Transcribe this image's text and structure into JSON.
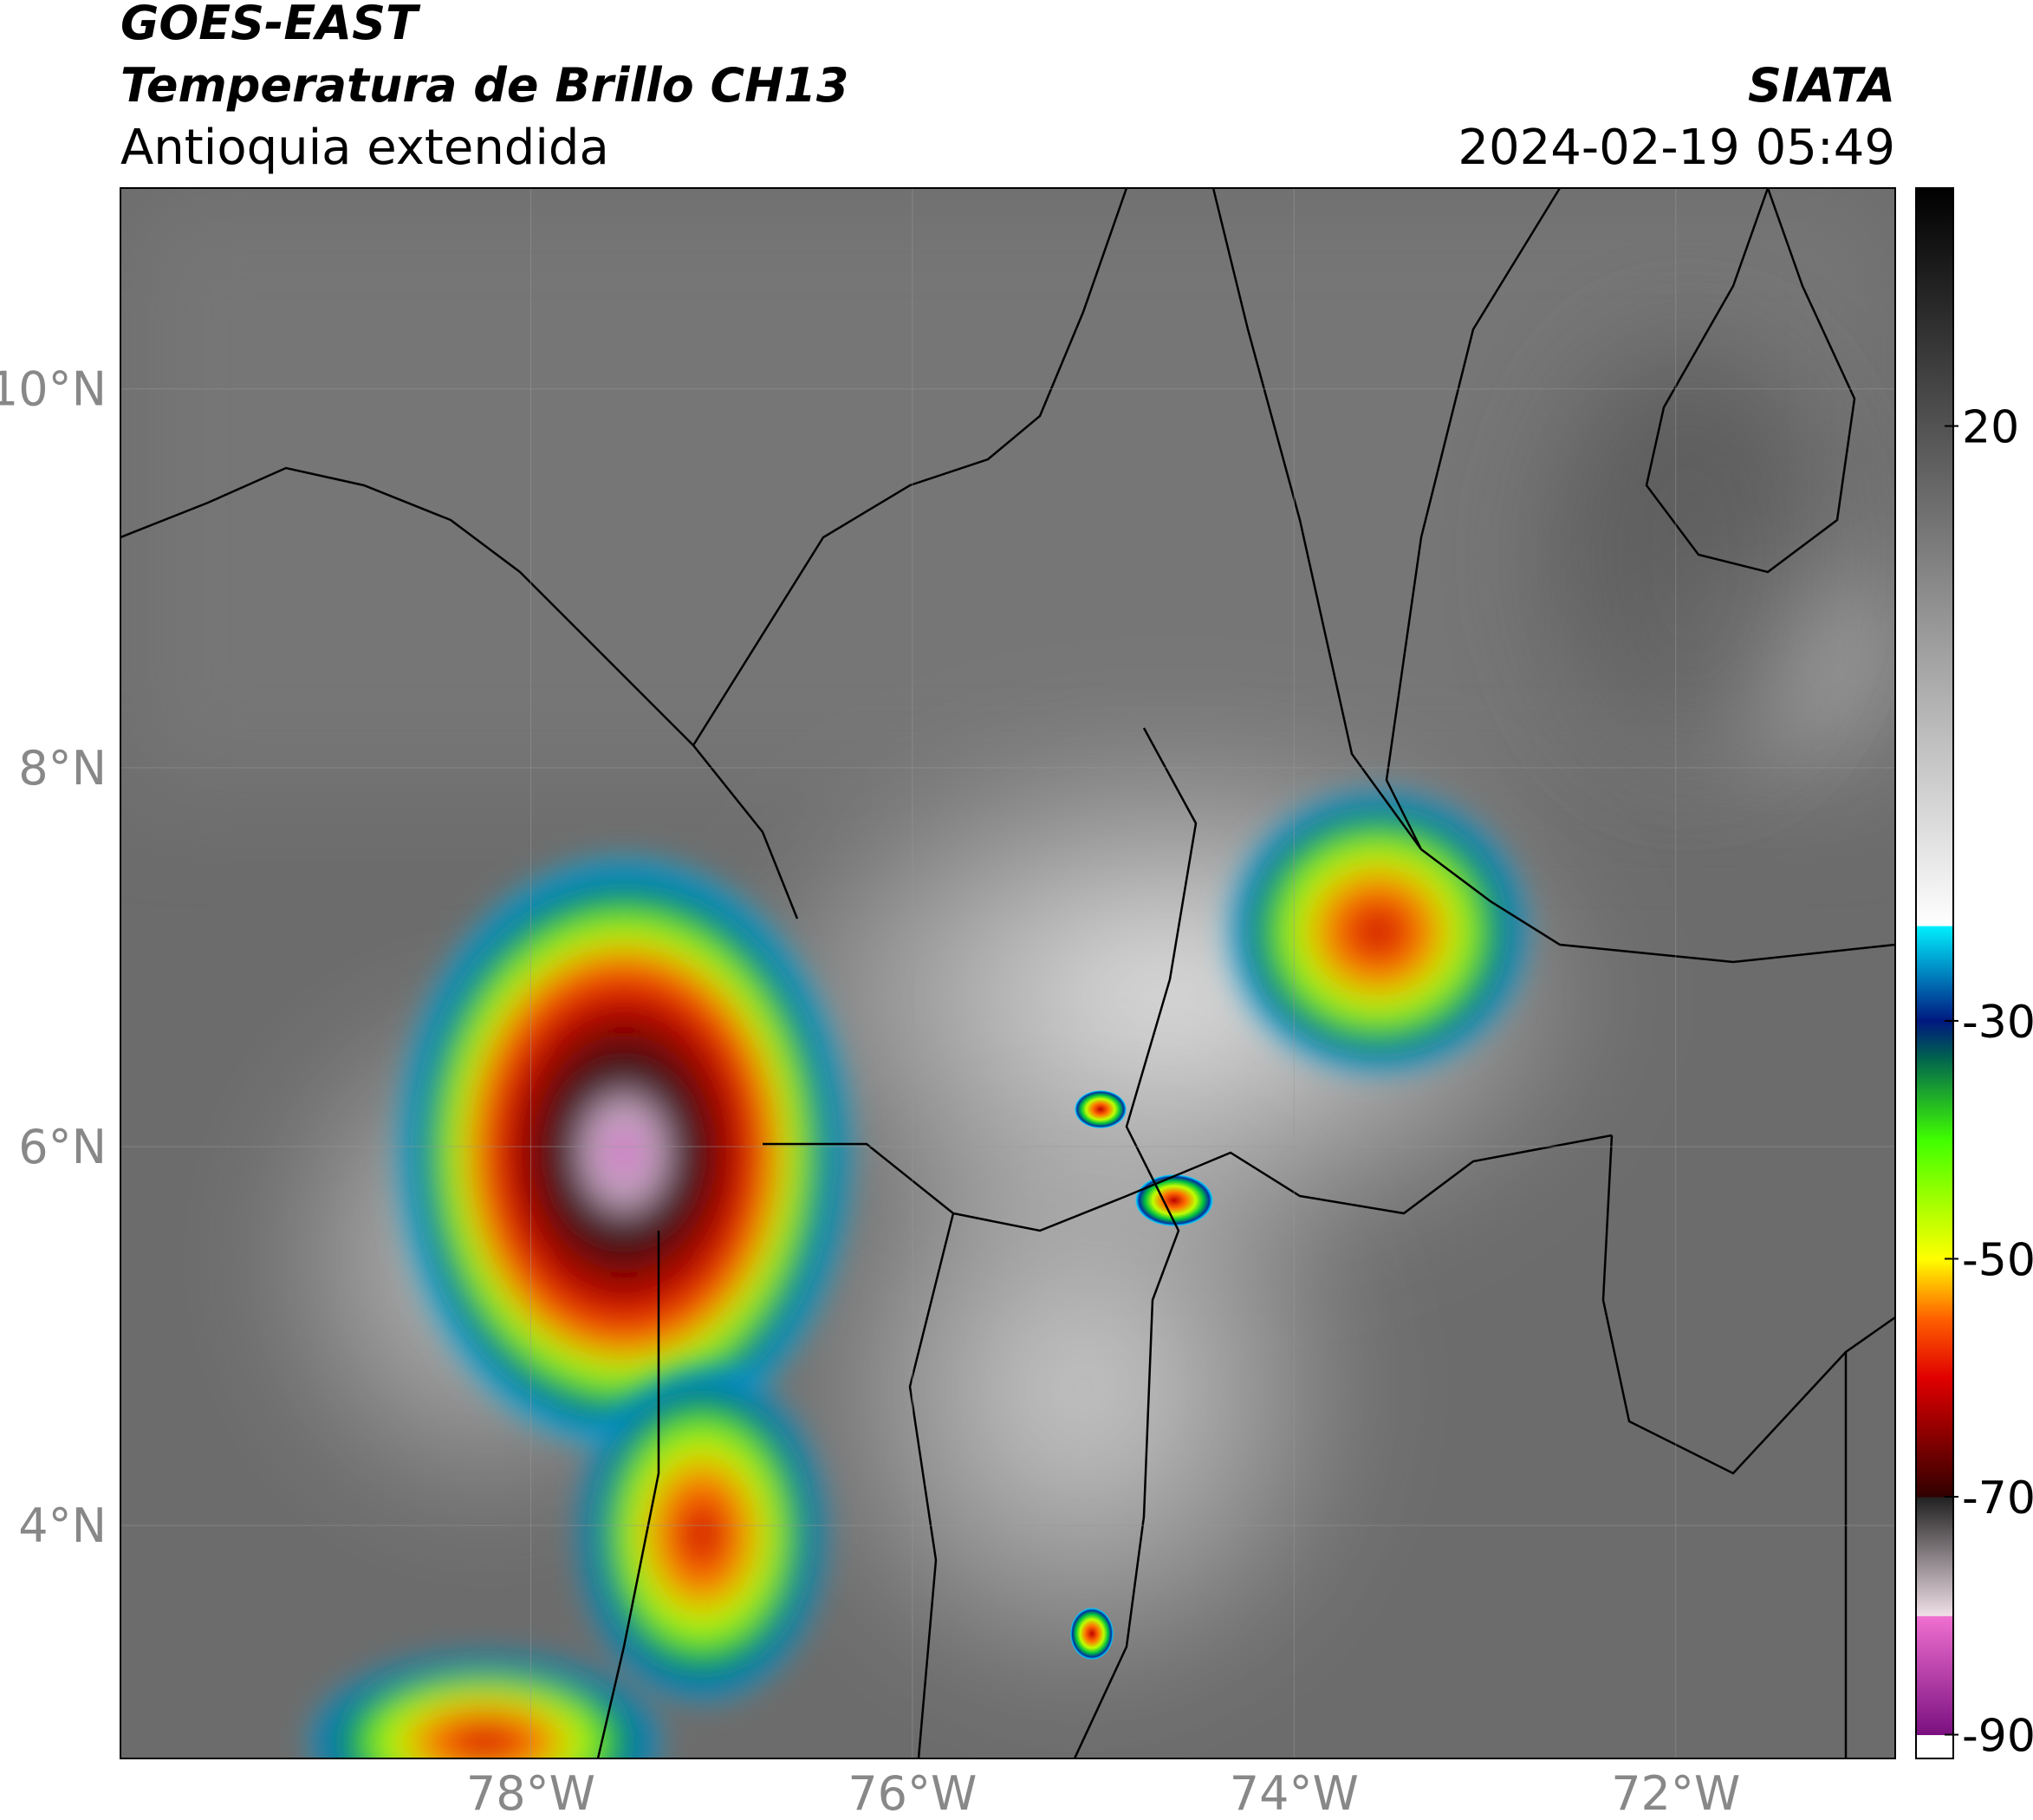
{
  "header": {
    "title": "GOES-EAST",
    "subtitle": "Temperatura de Brillo CH13",
    "region": "Antioquia extendida",
    "source": "SIATA",
    "datetime": "2024-02-19 05:49"
  },
  "map": {
    "type": "satellite",
    "xlim": [
      -80.15,
      -70.85
    ],
    "ylim": [
      2.77,
      11.06
    ],
    "xticks": [
      {
        "value": -78,
        "label": "78°W"
      },
      {
        "value": -76,
        "label": "76°W"
      },
      {
        "value": -74,
        "label": "74°W"
      },
      {
        "value": -72,
        "label": "72°W"
      }
    ],
    "yticks": [
      {
        "value": 4,
        "label": "4°N"
      },
      {
        "value": 6,
        "label": "6°N"
      },
      {
        "value": 8,
        "label": "8°N"
      },
      {
        "value": 10,
        "label": "10°N"
      }
    ],
    "grid": true
  },
  "colorbar": {
    "lim": [
      -92,
      40
    ],
    "ticks": [
      -90,
      -70,
      -50,
      -30,
      20
    ],
    "stops": [
      {
        "value": -92,
        "color": "#ffffff"
      },
      {
        "value": -90,
        "color": "#ffffff"
      },
      {
        "value": -90,
        "color": "#7a1080"
      },
      {
        "value": -80,
        "color": "#f070d0"
      },
      {
        "value": -80,
        "color": "#f0e0e8"
      },
      {
        "value": -70,
        "color": "#202020"
      },
      {
        "value": -70,
        "color": "#300000"
      },
      {
        "value": -60,
        "color": "#e00000"
      },
      {
        "value": -55,
        "color": "#ff6000"
      },
      {
        "value": -50,
        "color": "#ffff00"
      },
      {
        "value": -40,
        "color": "#40ff00"
      },
      {
        "value": -33,
        "color": "#006050"
      },
      {
        "value": -30,
        "color": "#001880"
      },
      {
        "value": -22,
        "color": "#00f0ff"
      },
      {
        "value": -22,
        "color": "#ffffff"
      },
      {
        "value": 40,
        "color": "#000000"
      }
    ]
  }
}
